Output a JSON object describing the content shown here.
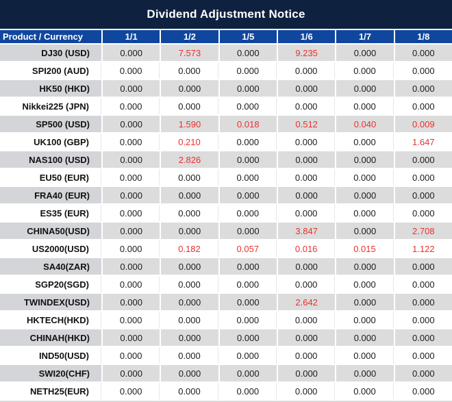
{
  "title": "Dividend Adjustment Notice",
  "colors": {
    "title_bar": "#0e2240",
    "header_blue": "#10479e",
    "header_text": "#ffffff",
    "row_gray": "#dcdcdc",
    "product_gray": "#d4d5d9",
    "gridline": "#e6e6e6",
    "text_dark": "#1a1a1a",
    "nonzero_red": "#e8312e"
  },
  "table": {
    "product_header": "Product / Currency",
    "date_columns": [
      "1/1",
      "1/2",
      "1/5",
      "1/6",
      "1/7",
      "1/8"
    ],
    "zero_value": "0.000",
    "rows": [
      {
        "product": "DJ30 (USD)",
        "values": [
          "0.000",
          "7.573",
          "0.000",
          "9.235",
          "0.000",
          "0.000"
        ]
      },
      {
        "product": "SPI200 (AUD)",
        "values": [
          "0.000",
          "0.000",
          "0.000",
          "0.000",
          "0.000",
          "0.000"
        ]
      },
      {
        "product": "HK50 (HKD)",
        "values": [
          "0.000",
          "0.000",
          "0.000",
          "0.000",
          "0.000",
          "0.000"
        ]
      },
      {
        "product": "Nikkei225 (JPN)",
        "values": [
          "0.000",
          "0.000",
          "0.000",
          "0.000",
          "0.000",
          "0.000"
        ]
      },
      {
        "product": "SP500 (USD)",
        "values": [
          "0.000",
          "1.590",
          "0.018",
          "0.512",
          "0.040",
          "0.009"
        ]
      },
      {
        "product": "UK100 (GBP)",
        "values": [
          "0.000",
          "0.210",
          "0.000",
          "0.000",
          "0.000",
          "1.647"
        ]
      },
      {
        "product": "NAS100 (USD)",
        "values": [
          "0.000",
          "2.826",
          "0.000",
          "0.000",
          "0.000",
          "0.000"
        ]
      },
      {
        "product": "EU50 (EUR)",
        "values": [
          "0.000",
          "0.000",
          "0.000",
          "0.000",
          "0.000",
          "0.000"
        ]
      },
      {
        "product": "FRA40 (EUR)",
        "values": [
          "0.000",
          "0.000",
          "0.000",
          "0.000",
          "0.000",
          "0.000"
        ]
      },
      {
        "product": "ES35 (EUR)",
        "values": [
          "0.000",
          "0.000",
          "0.000",
          "0.000",
          "0.000",
          "0.000"
        ]
      },
      {
        "product": "CHINA50(USD)",
        "values": [
          "0.000",
          "0.000",
          "0.000",
          "3.847",
          "0.000",
          "2.708"
        ]
      },
      {
        "product": "US2000(USD)",
        "values": [
          "0.000",
          "0.182",
          "0.057",
          "0.016",
          "0.015",
          "1.122"
        ]
      },
      {
        "product": "SA40(ZAR)",
        "values": [
          "0.000",
          "0.000",
          "0.000",
          "0.000",
          "0.000",
          "0.000"
        ]
      },
      {
        "product": "SGP20(SGD)",
        "values": [
          "0.000",
          "0.000",
          "0.000",
          "0.000",
          "0.000",
          "0.000"
        ]
      },
      {
        "product": "TWINDEX(USD)",
        "values": [
          "0.000",
          "0.000",
          "0.000",
          "2.642",
          "0.000",
          "0.000"
        ]
      },
      {
        "product": "HKTECH(HKD)",
        "values": [
          "0.000",
          "0.000",
          "0.000",
          "0.000",
          "0.000",
          "0.000"
        ]
      },
      {
        "product": "CHINAH(HKD)",
        "values": [
          "0.000",
          "0.000",
          "0.000",
          "0.000",
          "0.000",
          "0.000"
        ]
      },
      {
        "product": "IND50(USD)",
        "values": [
          "0.000",
          "0.000",
          "0.000",
          "0.000",
          "0.000",
          "0.000"
        ]
      },
      {
        "product": "SWI20(CHF)",
        "values": [
          "0.000",
          "0.000",
          "0.000",
          "0.000",
          "0.000",
          "0.000"
        ]
      },
      {
        "product": "NETH25(EUR)",
        "values": [
          "0.000",
          "0.000",
          "0.000",
          "0.000",
          "0.000",
          "0.000"
        ]
      }
    ]
  }
}
